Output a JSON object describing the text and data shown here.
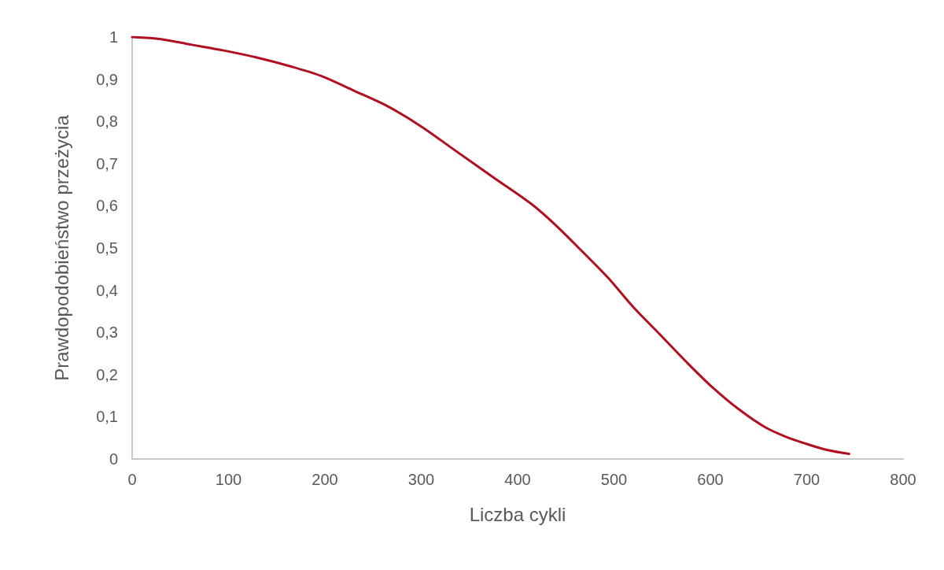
{
  "chart_data": {
    "type": "line",
    "xlabel": "Liczba cykli",
    "ylabel": "Prawdopodobieństwo przeżycia",
    "x": [
      0,
      30,
      61,
      95,
      130,
      165,
      197,
      230,
      265,
      300,
      334,
      375,
      415,
      440,
      467,
      494,
      520,
      549,
      576,
      603,
      630,
      657,
      678,
      698,
      720,
      744
    ],
    "series": [
      {
        "color": "#b01020",
        "values": [
          1.0,
          0.995,
          0.982,
          0.968,
          0.951,
          0.93,
          0.907,
          0.873,
          0.836,
          0.788,
          0.733,
          0.667,
          0.603,
          0.553,
          0.492,
          0.429,
          0.36,
          0.292,
          0.228,
          0.168,
          0.117,
          0.075,
          0.053,
          0.037,
          0.022,
          0.012
        ]
      }
    ],
    "xlim": [
      0,
      800
    ],
    "xticks": [
      0,
      100,
      200,
      300,
      400,
      500,
      600,
      700,
      800
    ],
    "ylim": [
      0,
      1
    ],
    "yticks": [
      0,
      {
        "value": 0.1,
        "label": "0,1"
      },
      {
        "value": 0.2,
        "label": "0,2"
      },
      {
        "value": 0.3,
        "label": "0,3"
      },
      {
        "value": 0.4,
        "label": "0,4"
      },
      {
        "value": 0.5,
        "label": "0,5"
      },
      {
        "value": 0.6,
        "label": "0,6"
      },
      {
        "value": 0.7,
        "label": "0,7"
      },
      {
        "value": 0.8,
        "label": "0,8"
      },
      {
        "value": 0.9,
        "label": "0,9"
      },
      1
    ],
    "marker": "none",
    "line_style": "solid"
  }
}
